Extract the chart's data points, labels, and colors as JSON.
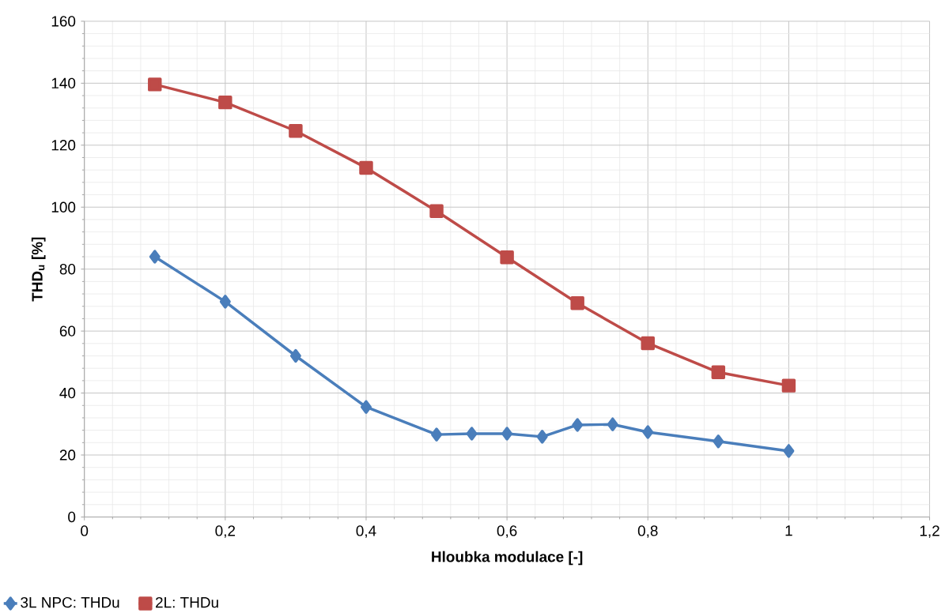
{
  "chart_data": {
    "type": "line",
    "xlabel": "Hloubka modulace [-]",
    "ylabel": "THD$_{u}$ [%]",
    "xlim": [
      0,
      1.2
    ],
    "ylim": [
      0,
      160
    ],
    "xticks": [
      0,
      {
        "value": 0.2,
        "label": "0,2"
      },
      {
        "value": 0.4,
        "label": "0,4"
      },
      {
        "value": 0.6,
        "label": "0,6"
      },
      {
        "value": 0.8,
        "label": "0,8"
      },
      1,
      {
        "value": 1.2,
        "label": "1,2"
      }
    ],
    "yticks": [
      0,
      20,
      40,
      60,
      80,
      100,
      120,
      140,
      160
    ],
    "grid": true,
    "legend": "bottom left",
    "line_style": "solid",
    "series": [
      {
        "name": "3L NPC: THDu",
        "color": "#4a7ebb",
        "marker": "diamond",
        "x": [
          0.1,
          0.2,
          0.3,
          0.4,
          0.5,
          0.55,
          0.6,
          0.65,
          0.7,
          0.75,
          0.8,
          0.9,
          1.0
        ],
        "values": [
          84.0,
          69.5,
          52.0,
          35.5,
          26.6,
          26.9,
          26.9,
          25.9,
          29.7,
          29.9,
          27.4,
          24.4,
          21.3
        ]
      },
      {
        "name": "2L: THDu",
        "color": "#be4b48",
        "marker": "square",
        "x": [
          0.1,
          0.2,
          0.3,
          0.4,
          0.5,
          0.6,
          0.7,
          0.8,
          0.9,
          1.0
        ],
        "values": [
          139.6,
          133.8,
          124.6,
          112.7,
          98.7,
          83.8,
          69.0,
          56.1,
          46.7,
          42.4
        ]
      }
    ]
  }
}
